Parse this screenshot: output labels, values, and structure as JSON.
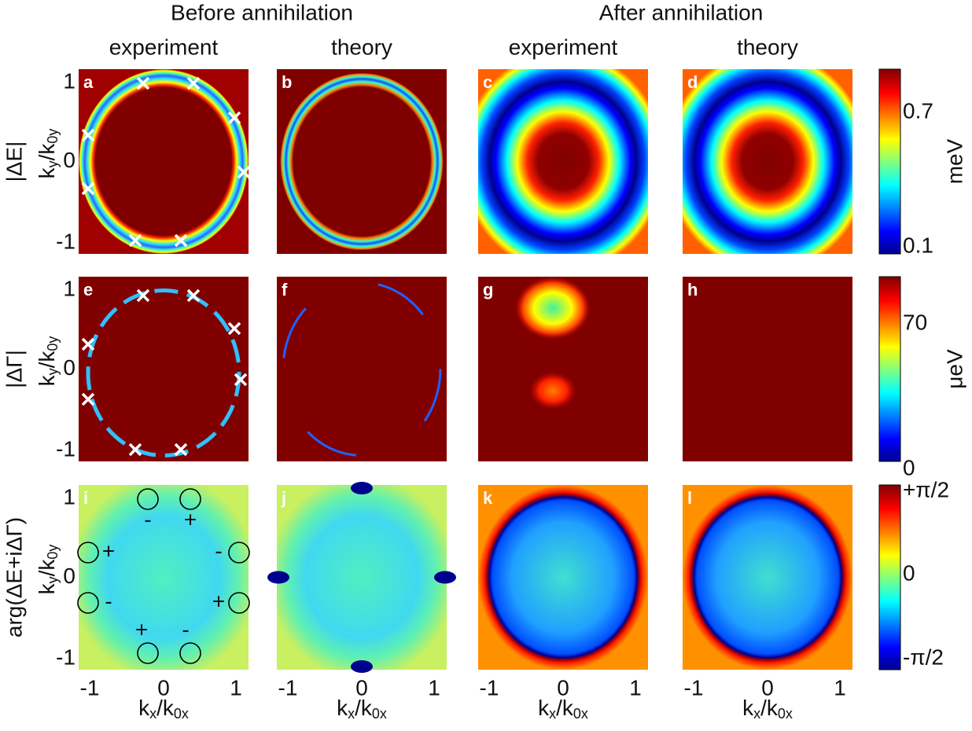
{
  "headers": {
    "before": "Before annihilation",
    "after": "After annihilation"
  },
  "columns": [
    "experiment",
    "theory",
    "experiment",
    "theory"
  ],
  "rows": [
    "|ΔE|",
    "|ΔΓ|",
    "arg(ΔE+iΔΓ)"
  ],
  "panels": [
    "a",
    "b",
    "c",
    "d",
    "e",
    "f",
    "g",
    "h",
    "i",
    "j",
    "k",
    "l"
  ],
  "y_axis": {
    "label": {
      "base": "k",
      "sub": "y",
      "mid": "/k",
      "sub2": "0y"
    },
    "ticks": [
      1,
      0,
      -1
    ]
  },
  "x_axis": {
    "label": {
      "base": "k",
      "sub": "x",
      "mid": "/k",
      "sub2": "0x"
    },
    "ticks": [
      -1,
      0,
      1
    ]
  },
  "colorbars": [
    {
      "unit": "meV",
      "ticks": [
        0.7,
        0.1
      ]
    },
    {
      "unit": "μeV",
      "ticks": [
        70,
        0
      ]
    },
    {
      "ticks": [
        {
          "value": 1.5708,
          "label": "+π/2"
        },
        0,
        {
          "value": -1.5708,
          "label": "-π/2"
        }
      ]
    }
  ],
  "annotations": {
    "signs": [
      "-",
      "+",
      "+",
      "-",
      "-",
      "+",
      "+",
      "-"
    ]
  }
}
